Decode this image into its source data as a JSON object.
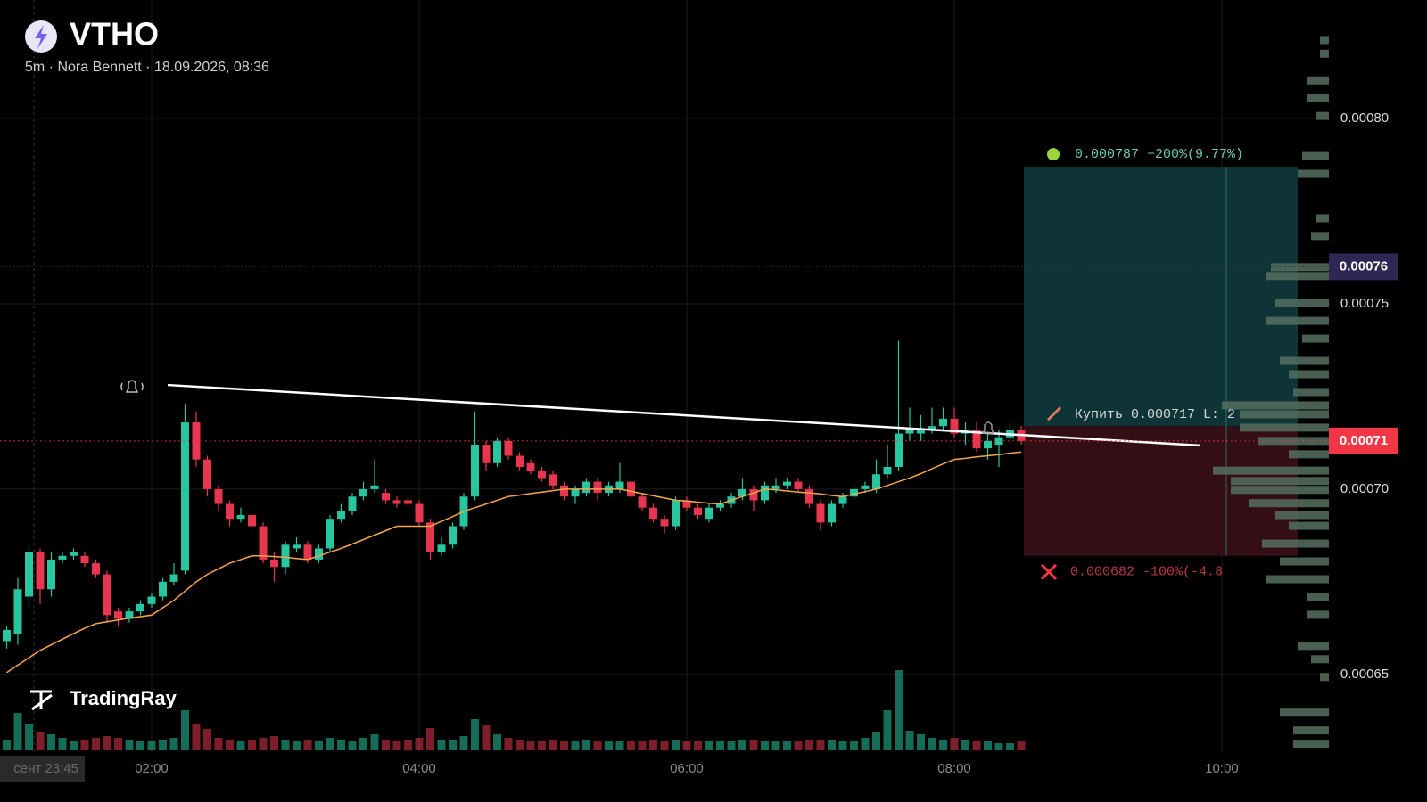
{
  "header": {
    "symbol": "VTHO",
    "subtitle": "5m · Nora Bennett · 18.09.2026, 08:36"
  },
  "brand": "TradingRay",
  "chart_data": {
    "type": "candlestick",
    "up_color": "#26c6a0",
    "down_color": "#e8364f",
    "open": [
      0.000659,
      0.000661,
      0.000671,
      0.000683,
      0.000673,
      0.000681,
      0.000682,
      0.000682,
      0.00068,
      0.000677,
      0.000667,
      0.000665,
      0.000667,
      0.000669,
      0.000671,
      0.000675,
      0.000678,
      0.000718,
      0.000708,
      0.0007,
      0.000696,
      0.000692,
      0.000693,
      0.00069,
      0.000681,
      0.000679,
      0.000684,
      0.000685,
      0.000681,
      0.000684,
      0.000692,
      0.000694,
      0.000698,
      0.0007,
      0.000699,
      0.000697,
      0.000697,
      0.000696,
      0.000691,
      0.000683,
      0.000685,
      0.00069,
      0.000698,
      0.000712,
      0.000707,
      0.000713,
      0.000709,
      0.000707,
      0.000705,
      0.000704,
      0.000701,
      0.000698,
      0.000699,
      0.000702,
      0.000699,
      0.0007,
      0.000702,
      0.000698,
      0.000695,
      0.000692,
      0.00069,
      0.000697,
      0.000695,
      0.000692,
      0.000695,
      0.000696,
      0.000698,
      0.0007,
      0.000697,
      0.0007,
      0.000701,
      0.000702,
      0.0007,
      0.000696,
      0.000691,
      0.000696,
      0.000698,
      0.0007,
      0.0007,
      0.000704,
      0.000706,
      0.000715,
      0.000715,
      0.000716,
      0.000717,
      0.000719,
      0.000715,
      0.000716,
      0.000711,
      0.000712,
      0.000714,
      0.000716
    ],
    "high": [
      0.000663,
      0.000676,
      0.000685,
      0.000684,
      0.000683,
      0.000683,
      0.000684,
      0.000683,
      0.000681,
      0.000678,
      0.000668,
      0.000668,
      0.00067,
      0.000672,
      0.000676,
      0.00068,
      0.000723,
      0.000721,
      0.000709,
      0.000701,
      0.000697,
      0.000695,
      0.000694,
      0.000691,
      0.000683,
      0.000686,
      0.000687,
      0.000686,
      0.000685,
      0.000693,
      0.000696,
      0.000699,
      0.000702,
      0.000708,
      0.0007,
      0.000698,
      0.000698,
      0.000697,
      0.000692,
      0.000687,
      0.000691,
      0.000699,
      0.000721,
      0.000713,
      0.000714,
      0.000714,
      0.00071,
      0.000708,
      0.000706,
      0.000705,
      0.000702,
      0.000701,
      0.000703,
      0.000703,
      0.000702,
      0.000707,
      0.000703,
      0.000699,
      0.000696,
      0.000693,
      0.000698,
      0.000698,
      0.000696,
      0.000696,
      0.000697,
      0.000699,
      0.000703,
      0.000701,
      0.000702,
      0.000703,
      0.000703,
      0.000703,
      0.000701,
      0.000697,
      0.000697,
      0.000699,
      0.000701,
      0.000702,
      0.000708,
      0.000712,
      0.00074,
      0.000722,
      0.00072,
      0.000722,
      0.000722,
      0.000722,
      0.000718,
      0.000718,
      0.000715,
      0.000716,
      0.000718,
      0.000717
    ],
    "low": [
      0.000657,
      0.000658,
      0.000668,
      0.000669,
      0.000671,
      0.00068,
      0.000681,
      0.000679,
      0.000676,
      0.000664,
      0.000663,
      0.000664,
      0.000666,
      0.000668,
      0.00067,
      0.000674,
      0.000677,
      0.000706,
      0.000698,
      0.000694,
      0.00069,
      0.000691,
      0.000689,
      0.00068,
      0.000675,
      0.000677,
      0.000683,
      0.00068,
      0.00068,
      0.000683,
      0.000691,
      0.000693,
      0.000697,
      0.000699,
      0.000696,
      0.000695,
      0.000695,
      0.00069,
      0.000681,
      0.000682,
      0.000684,
      0.000689,
      0.000697,
      0.000705,
      0.000706,
      0.000708,
      0.000705,
      0.000704,
      0.000702,
      0.0007,
      0.000697,
      0.000696,
      0.000698,
      0.000697,
      0.000698,
      0.000699,
      0.000697,
      0.000694,
      0.000691,
      0.000688,
      0.000689,
      0.000694,
      0.000692,
      0.000691,
      0.000694,
      0.000695,
      0.000697,
      0.000694,
      0.000696,
      0.000699,
      0.0007,
      0.000699,
      0.000695,
      0.000689,
      0.00069,
      0.000695,
      0.000697,
      0.000699,
      0.000699,
      0.000703,
      0.000705,
      0.000713,
      0.000713,
      0.000715,
      0.000716,
      0.000714,
      0.000712,
      0.00071,
      0.000708,
      0.000706,
      0.000713,
      0.000712
    ],
    "close": [
      0.000662,
      0.000673,
      0.000683,
      0.000673,
      0.000681,
      0.000682,
      0.000683,
      0.00068,
      0.000677,
      0.000666,
      0.000665,
      0.000667,
      0.000669,
      0.000671,
      0.000675,
      0.000677,
      0.000718,
      0.000708,
      0.0007,
      0.000696,
      0.000692,
      0.000693,
      0.00069,
      0.000681,
      0.000679,
      0.000685,
      0.000685,
      0.000681,
      0.000684,
      0.000692,
      0.000694,
      0.000698,
      0.0007,
      0.000701,
      0.000697,
      0.000696,
      0.000696,
      0.000691,
      0.000683,
      0.000685,
      0.00069,
      0.000698,
      0.000712,
      0.000707,
      0.000713,
      0.000709,
      0.000706,
      0.000705,
      0.000703,
      0.000701,
      0.000698,
      0.0007,
      0.000702,
      0.000699,
      0.000701,
      0.000702,
      0.000698,
      0.000695,
      0.000692,
      0.00069,
      0.000697,
      0.000695,
      0.000693,
      0.000695,
      0.000696,
      0.000698,
      0.0007,
      0.000697,
      0.000701,
      0.000701,
      0.000702,
      0.0007,
      0.000696,
      0.000691,
      0.000696,
      0.000698,
      0.0007,
      0.000701,
      0.000704,
      0.000706,
      0.000715,
      0.000716,
      0.0007165,
      0.000717,
      0.000719,
      0.000715,
      0.000716,
      0.000711,
      0.000713,
      0.000714,
      0.000716,
      0.000713
    ],
    "volume": [
      12,
      42,
      30,
      20,
      18,
      14,
      10,
      12,
      14,
      16,
      14,
      12,
      10,
      10,
      12,
      14,
      45,
      30,
      24,
      14,
      12,
      10,
      12,
      14,
      16,
      12,
      10,
      12,
      10,
      14,
      12,
      10,
      14,
      18,
      12,
      10,
      12,
      14,
      25,
      12,
      12,
      16,
      35,
      28,
      18,
      14,
      12,
      10,
      10,
      12,
      10,
      10,
      12,
      10,
      10,
      10,
      10,
      10,
      12,
      10,
      12,
      10,
      10,
      10,
      10,
      10,
      12,
      12,
      10,
      10,
      10,
      10,
      12,
      12,
      12,
      10,
      10,
      14,
      20,
      45,
      90,
      22,
      18,
      14,
      12,
      14,
      12,
      10,
      10,
      8,
      8,
      10
    ],
    "ma": {
      "color": "#f5a64a",
      "values": [
        0.0006505,
        0.0006525,
        0.0006545,
        0.0006565,
        0.000658,
        0.0006595,
        0.000661,
        0.0006625,
        0.0006637,
        0.0006642,
        0.0006647,
        0.0006652,
        0.0006656,
        0.000666,
        0.000668,
        0.00067,
        0.0006725,
        0.000675,
        0.000677,
        0.0006785,
        0.00068,
        0.000681,
        0.000682,
        0.000682,
        0.0006818,
        0.0006816,
        0.0006813,
        0.000681,
        0.000682,
        0.000683,
        0.000684,
        0.0006852,
        0.0006864,
        0.0006876,
        0.0006888,
        0.00069,
        0.00069,
        0.00069,
        0.00069,
        0.0006913,
        0.0006926,
        0.000694,
        0.000695,
        0.000696,
        0.000697,
        0.000698,
        0.0006984,
        0.0006988,
        0.0006992,
        0.0006996,
        0.0007,
        0.0007,
        0.0007,
        0.0007,
        0.0007,
        0.0007,
        0.0006994,
        0.0006988,
        0.0006982,
        0.0006976,
        0.000697,
        0.0006968,
        0.0006965,
        0.0006962,
        0.000696,
        0.000697,
        0.000698,
        0.000699,
        0.0007,
        0.0006998,
        0.0006995,
        0.0006992,
        0.000699,
        0.0006987,
        0.0006983,
        0.000698,
        0.0006987,
        0.0006993,
        0.0007,
        0.000701,
        0.000702,
        0.000703,
        0.0007042,
        0.0007055,
        0.0007068,
        0.000708,
        0.0007083,
        0.0007087,
        0.000709,
        0.0007093,
        0.0007097,
        0.00071
      ]
    },
    "ylim": [
      0.0006288,
      0.000832
    ],
    "yticks": [
      {
        "value": 0.0008,
        "label": "0.00080"
      },
      0.00075,
      {
        "value": 0.0007,
        "label": "0.00070"
      },
      0.00065
    ],
    "xlim": [
      -0.6,
      118.6
    ],
    "xticks": [
      {
        "value": 13,
        "label": "02:00"
      },
      {
        "value": 37,
        "label": "04:00"
      },
      {
        "value": 61,
        "label": "06:00"
      },
      {
        "value": 85,
        "label": "08:00"
      },
      {
        "value": 109,
        "label": "10:00"
      }
    ],
    "crosshair_time_label": "сент 23:45",
    "price_labels": [
      {
        "value": 0.000713,
        "label": "0.00071",
        "color": "#f23645"
      },
      {
        "value": 0.00076,
        "label": "0.00076",
        "color": "#2e2754"
      }
    ],
    "trendline": {
      "x": [
        14.44,
        107
      ],
      "y": [
        0.0007281,
        0.0007118
      ],
      "color": "#ffffff"
    },
    "position": {
      "x": [
        91.24,
        115.8
      ],
      "target": 0.000787,
      "entry": 0.000717,
      "stop": 0.000682,
      "target_label": "0.000787 +200%(9.77%)",
      "entry_label": "Купить 0.000717 L: 2",
      "stop_label": "0.000682 -100%(-4.8"
    },
    "volume_profile": {
      "color": "#55705f",
      "prices": [
        0.0008212,
        0.0008175,
        0.0008103,
        0.0008055,
        0.0008007,
        0.0007899,
        0.0007851,
        0.0007731,
        0.0007683,
        0.0007599,
        0.0007575,
        0.0007502,
        0.0007454,
        0.0007406,
        0.0007346,
        0.000731,
        0.0007262,
        0.0007226,
        0.0007202,
        0.0007166,
        0.000713,
        0.0007094,
        0.000705,
        0.0007022,
        0.0006998,
        0.0006962,
        0.000693,
        0.0006901,
        0.0006853,
        0.0006805,
        0.0006757,
        0.0006709,
        0.0006661,
        0.0006577,
        0.0006541,
        0.0006493,
        0.0006397,
        0.0006349,
        0.0006313
      ],
      "volumes": [
        10,
        10,
        25,
        25,
        15,
        30,
        35,
        15,
        20,
        65,
        70,
        60,
        70,
        30,
        55,
        45,
        40,
        120,
        100,
        100,
        80,
        45,
        130,
        110,
        110,
        90,
        60,
        45,
        75,
        55,
        70,
        25,
        25,
        35,
        20,
        10,
        55,
        40,
        40
      ]
    }
  }
}
